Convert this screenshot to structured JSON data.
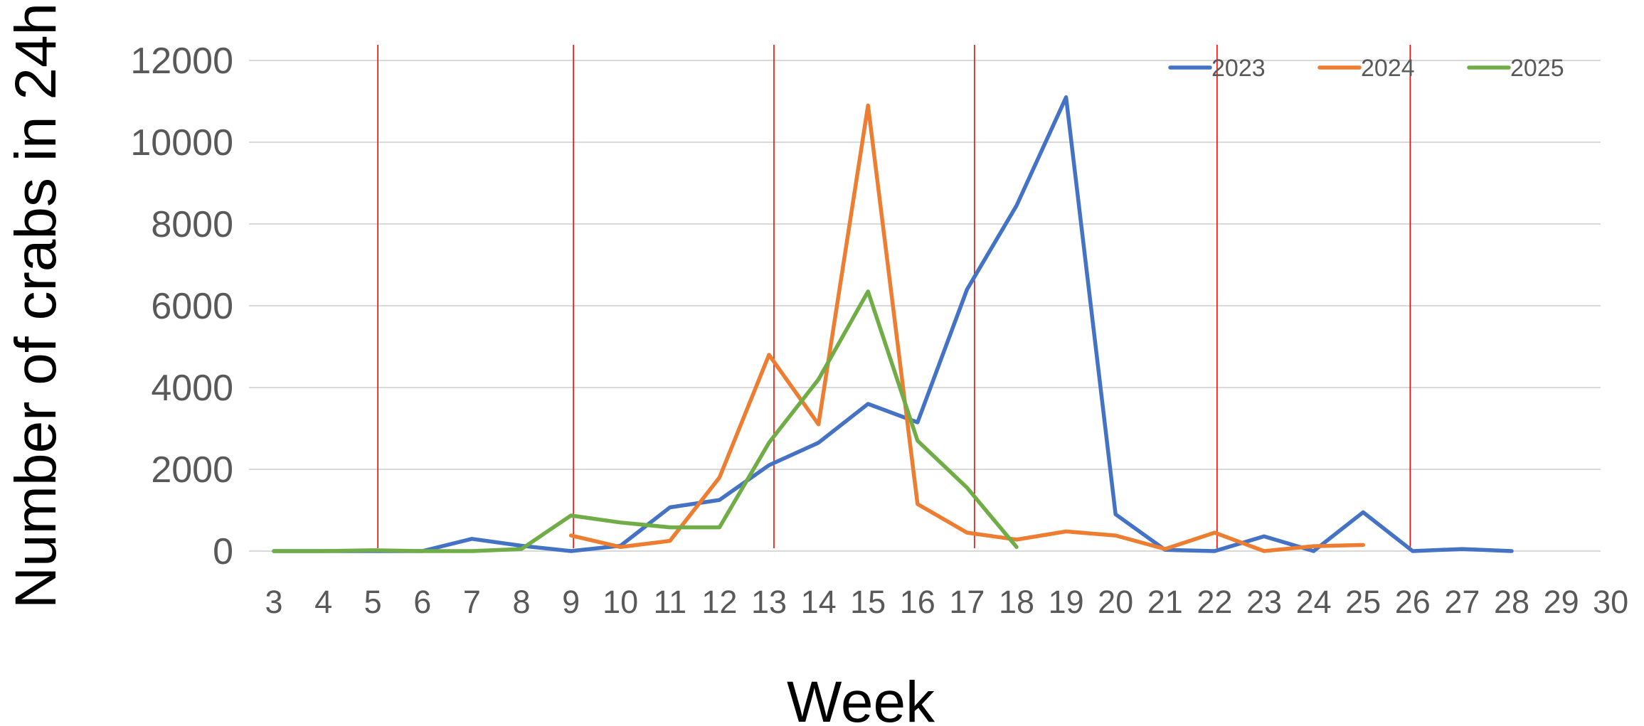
{
  "chart_data": {
    "type": "line",
    "title": "",
    "xlabel": "Week",
    "ylabel": "Number of crabs in 24h",
    "categories": [
      "3",
      "4",
      "5",
      "6",
      "7",
      "8",
      "9",
      "10",
      "11",
      "12",
      "13",
      "14",
      "15",
      "16",
      "17",
      "18",
      "19",
      "20",
      "21",
      "22",
      "23",
      "24",
      "25",
      "26",
      "27",
      "28",
      "29",
      "30"
    ],
    "ylim": [
      0,
      12000
    ],
    "yticks": [
      "0",
      "2000",
      "4000",
      "6000",
      "8000",
      "10000",
      "12000"
    ],
    "grid": true,
    "legend_position": "top-right",
    "series": [
      {
        "name": "2023",
        "color": "#4472C4",
        "values": [
          0,
          0,
          0,
          0,
          300,
          130,
          0,
          130,
          1070,
          1250,
          2100,
          2650,
          3600,
          3150,
          6400,
          8450,
          11100,
          900,
          30,
          0,
          360,
          0,
          950,
          0,
          50,
          0,
          null,
          null
        ]
      },
      {
        "name": "2024",
        "color": "#ED7D31",
        "values": [
          null,
          null,
          null,
          null,
          null,
          null,
          380,
          100,
          250,
          1800,
          4800,
          3100,
          10900,
          1150,
          450,
          280,
          480,
          380,
          50,
          450,
          0,
          120,
          150,
          null,
          null,
          null,
          null,
          null
        ]
      },
      {
        "name": "2025",
        "color": "#70AD47",
        "values": [
          0,
          0,
          20,
          0,
          0,
          50,
          870,
          700,
          580,
          580,
          2650,
          4200,
          6350,
          2700,
          1550,
          100,
          null,
          null,
          null,
          null,
          null,
          null,
          null,
          null,
          null,
          null,
          null,
          null
        ]
      }
    ],
    "reference_lines": {
      "color": "#FF0000",
      "x": [
        5.1,
        9.05,
        13.1,
        17.15,
        22.05,
        25.95
      ]
    }
  }
}
